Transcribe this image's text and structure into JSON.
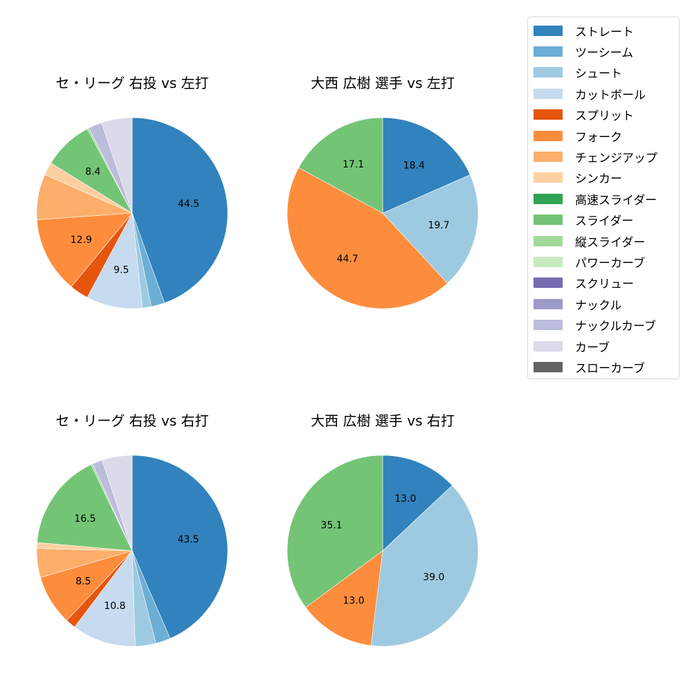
{
  "chart_data": [
    {
      "type": "pie",
      "title": "セ・リーグ 右投 vs 左打",
      "categories": [
        "ストレート",
        "ツーシーム",
        "シュート",
        "カットボール",
        "スプリット",
        "フォーク",
        "チェンジアップ",
        "シンカー",
        "スライダー",
        "縦スライダー",
        "ナックルカーブ",
        "カーブ"
      ],
      "values": [
        44.5,
        2.3,
        1.5,
        9.5,
        3.2,
        12.9,
        7.7,
        2.2,
        8.4,
        0.3,
        2.3,
        5.2
      ],
      "labels_shown": {
        "ストレート": "44.5",
        "カットボール": "9.5",
        "フォーク": "12.9",
        "スライダー": "8.4"
      }
    },
    {
      "type": "pie",
      "title": "大西 広樹 選手 vs 左打",
      "categories": [
        "ストレート",
        "シュート",
        "フォーク",
        "スライダー"
      ],
      "values": [
        18.4,
        19.7,
        44.7,
        17.1
      ],
      "labels_shown": {
        "ストレート": "18.4",
        "シュート": "19.7",
        "フォーク": "44.7",
        "スライダー": "17.1"
      }
    },
    {
      "type": "pie",
      "title": "セ・リーグ 右投 vs 右打",
      "categories": [
        "ストレート",
        "ツーシーム",
        "シュート",
        "カットボール",
        "スプリット",
        "フォーク",
        "チェンジアップ",
        "シンカー",
        "スライダー",
        "縦スライダー",
        "ナックルカーブ",
        "カーブ"
      ],
      "values": [
        43.5,
        2.5,
        3.5,
        10.8,
        1.7,
        8.5,
        4.9,
        1.0,
        16.5,
        0.3,
        1.7,
        5.1
      ],
      "labels_shown": {
        "ストレート": "43.5",
        "カットボール": "10.8",
        "フォーク": "8.5",
        "スライダー": "16.5"
      }
    },
    {
      "type": "pie",
      "title": "大西 広樹 選手 vs 右打",
      "categories": [
        "ストレート",
        "シュート",
        "フォーク",
        "スライダー"
      ],
      "values": [
        13.0,
        39.0,
        13.0,
        35.1
      ],
      "labels_shown": {
        "ストレート": "13.0",
        "シュート": "39.0",
        "フォーク": "13.0",
        "スライダー": "35.1"
      }
    }
  ],
  "legend": [
    {
      "label": "ストレート",
      "color": "#3182bd"
    },
    {
      "label": "ツーシーム",
      "color": "#6baed6"
    },
    {
      "label": "シュート",
      "color": "#9ecae1"
    },
    {
      "label": "カットボール",
      "color": "#c6dbef"
    },
    {
      "label": "スプリット",
      "color": "#e6550d"
    },
    {
      "label": "フォーク",
      "color": "#fd8d3c"
    },
    {
      "label": "チェンジアップ",
      "color": "#fdae6b"
    },
    {
      "label": "シンカー",
      "color": "#fdd0a2"
    },
    {
      "label": "高速スライダー",
      "color": "#31a354"
    },
    {
      "label": "スライダー",
      "color": "#74c476"
    },
    {
      "label": "縦スライダー",
      "color": "#a1d99b"
    },
    {
      "label": "パワーカーブ",
      "color": "#c7e9c0"
    },
    {
      "label": "スクリュー",
      "color": "#756bb1"
    },
    {
      "label": "ナックル",
      "color": "#9e9ac8"
    },
    {
      "label": "ナックルカーブ",
      "color": "#bcbddc"
    },
    {
      "label": "カーブ",
      "color": "#dadaeb"
    },
    {
      "label": "スローカーブ",
      "color": "#636363"
    }
  ]
}
